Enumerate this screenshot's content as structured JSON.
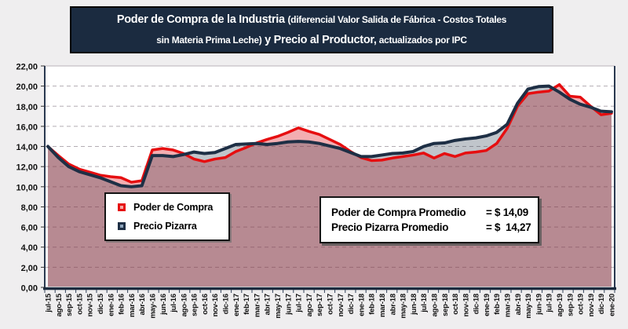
{
  "title": {
    "part1": "Poder de Compra de la Industria ",
    "part2a": "(diferencial Valor Salida de Fábrica - Costos Totales",
    "part2b": "sin Materia Prima Leche)",
    "part3": " y Precio al Productor,",
    "part4": " actualizados por IPC"
  },
  "legend": {
    "items": [
      {
        "label": "Poder de Compra",
        "color": "#e60e10",
        "inner": "#f6a9a4"
      },
      {
        "label": "Precio Pizarra",
        "color": "#1e2f45",
        "inner": "#8ea5bc"
      }
    ]
  },
  "annotation": {
    "rows": [
      {
        "label": "Poder de Compra Promedio",
        "value": "= $ 14,09"
      },
      {
        "label": "Precio Pizarra Promedio",
        "value": "= $  14,27"
      }
    ]
  },
  "chart_data": {
    "type": "area",
    "title": "Poder de Compra de la Industria (diferencial Valor Salida de Fábrica - Costos Totales sin Materia Prima Leche) y Precio al Productor, actualizados por IPC",
    "xlabel": "",
    "ylabel": "",
    "ylim": [
      0,
      22
    ],
    "ytick_step": 2,
    "ytick_labels": [
      "0,00",
      "2,00",
      "4,00",
      "6,00",
      "8,00",
      "10,00",
      "12,00",
      "14,00",
      "16,00",
      "18,00",
      "20,00",
      "22,00"
    ],
    "grid": "horizontal-dashed",
    "legend_position": "inside-left-bottom",
    "categories": [
      "jul-15",
      "ago-15",
      "sep-15",
      "oct-15",
      "nov-15",
      "dic-15",
      "ene-16",
      "feb-16",
      "mar-16",
      "abr-16",
      "may-16",
      "jun-16",
      "jul-16",
      "ago-16",
      "sep-16",
      "oct-16",
      "nov-16",
      "dic-16",
      "ene-17",
      "feb-17",
      "mar-17",
      "abr-17",
      "may-17",
      "jun-17",
      "jul-17",
      "ago-17",
      "sep-17",
      "oct-17",
      "nov-17",
      "dic-17",
      "ene-18",
      "feb-18",
      "mar-18",
      "abr-18",
      "may-18",
      "jun-18",
      "jul-18",
      "ago-18",
      "sep-18",
      "oct-18",
      "nov-18",
      "dic-18",
      "ene-19",
      "feb-19",
      "mar-19",
      "abr-19",
      "may-19",
      "jun-19",
      "jul-19",
      "ago-19",
      "sep-19",
      "oct-19",
      "nov-19",
      "dic-19",
      "ene-20"
    ],
    "series": [
      {
        "name": "Poder de Compra",
        "color": "#e60e10",
        "fill": "rgba(226,62,68,0.42)",
        "values": [
          14.0,
          13.1,
          12.25,
          11.75,
          11.45,
          11.15,
          11.0,
          10.9,
          10.45,
          10.6,
          13.65,
          13.8,
          13.65,
          13.3,
          12.75,
          12.5,
          12.75,
          12.9,
          13.5,
          13.9,
          14.35,
          14.7,
          15.0,
          15.4,
          15.85,
          15.5,
          15.2,
          14.7,
          14.2,
          13.5,
          12.9,
          12.6,
          12.65,
          12.85,
          13.0,
          13.15,
          13.35,
          12.85,
          13.3,
          13.0,
          13.35,
          13.45,
          13.6,
          14.3,
          15.8,
          18.0,
          19.25,
          19.4,
          19.5,
          20.15,
          19.0,
          18.9,
          18.0,
          17.15,
          17.3
        ]
      },
      {
        "name": "Precio Pizarra",
        "color": "#1e2f45",
        "fill": "rgba(30,48,70,0.28)",
        "values": [
          14.0,
          12.9,
          12.0,
          11.5,
          11.2,
          10.9,
          10.5,
          10.1,
          10.0,
          10.1,
          13.1,
          13.1,
          13.0,
          13.2,
          13.45,
          13.3,
          13.4,
          13.8,
          14.2,
          14.25,
          14.3,
          14.2,
          14.3,
          14.45,
          14.5,
          14.45,
          14.3,
          14.05,
          13.8,
          13.4,
          13.0,
          13.0,
          13.15,
          13.3,
          13.35,
          13.5,
          14.0,
          14.3,
          14.35,
          14.6,
          14.75,
          14.85,
          15.05,
          15.4,
          16.2,
          18.3,
          19.7,
          19.95,
          20.0,
          19.4,
          18.7,
          18.2,
          17.9,
          17.5,
          17.45
        ]
      }
    ],
    "averages": [
      {
        "name": "Poder de Compra Promedio",
        "value": "14,09"
      },
      {
        "name": "Precio Pizarra Promedio",
        "value": "14,27"
      }
    ]
  }
}
